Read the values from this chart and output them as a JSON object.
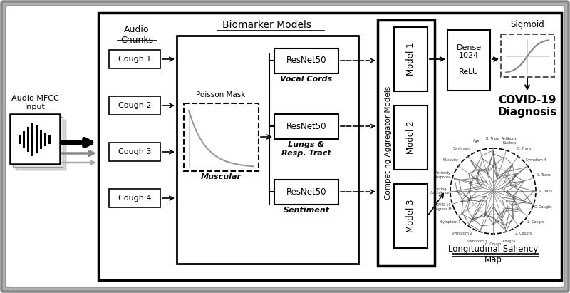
{
  "bg_outer": "#c8c8c8",
  "bg_inner": "#f0f0f0",
  "bg_white": "#ffffff",
  "audio_label": "Audio MFCC\nInput",
  "audio_chunks_label": "Audio\nChunks",
  "biomarker_label": "Biomarker Models",
  "competing_label": "Competing Aggregator Models",
  "cough_labels": [
    "Cough 1",
    "Cough 2",
    "Cough 3",
    "Cough 4"
  ],
  "resnet_sublabels": [
    "Vocal Cords",
    "Lungs &\nResp. Tract",
    "Sentiment"
  ],
  "model_labels": [
    "Model 1",
    "Model 2",
    "Model 3"
  ],
  "dense_label": "Dense\n1024\n\nReLU",
  "sigmoid_label": "Sigmoid",
  "saliency_label": "Longitudinal Saliency\nMap",
  "poisson_label": "Poisson Mask",
  "muscular_label": "Muscular",
  "covid_label": "COVID-19\nDiagnosis"
}
